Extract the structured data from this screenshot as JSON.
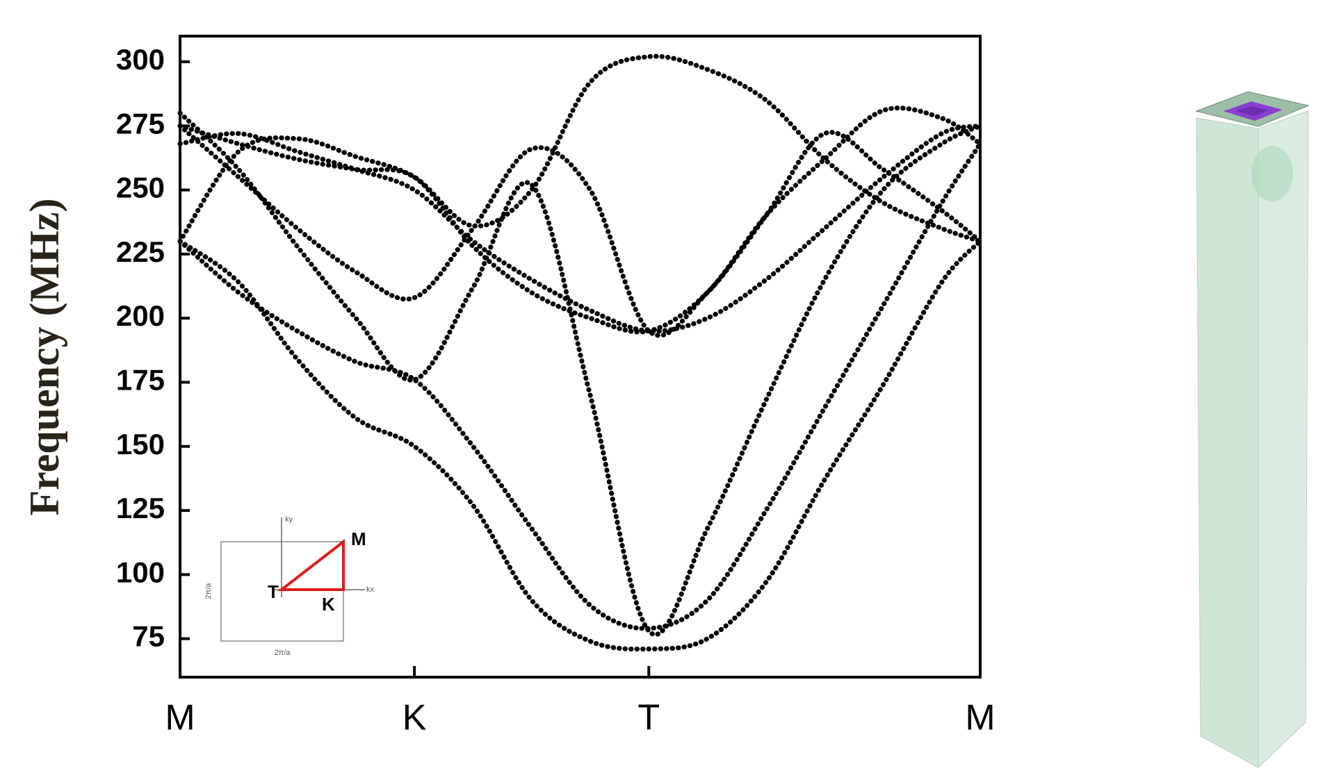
{
  "chart_data": {
    "type": "line",
    "ylabel": "Frequency (MHz)",
    "x": [
      0,
      0.25,
      0.5,
      0.75,
      1,
      1.25,
      1.5,
      1.75,
      2,
      2.25,
      2.5,
      2.75,
      3,
      3.25,
      3.414
    ],
    "xlim": [
      0,
      3.414
    ],
    "xticks": [
      {
        "value": 0,
        "label": "M"
      },
      {
        "value": 1,
        "label": "K"
      },
      {
        "value": 2,
        "label": "T"
      },
      {
        "value": 3.414,
        "label": "M"
      }
    ],
    "ylim": [
      60,
      310
    ],
    "yticks": [
      75,
      100,
      125,
      150,
      175,
      200,
      225,
      250,
      275,
      300
    ],
    "series": [
      {
        "color": "#000000",
        "values": [
          230,
          214,
          184,
          161,
          150,
          127,
          90,
          74,
          71,
          75,
          97,
          137,
          174,
          214,
          230
        ]
      },
      {
        "color": "#000000",
        "values": [
          230,
          210,
          195,
          183,
          176,
          150,
          118,
          88,
          79,
          90,
          125,
          165,
          205,
          245,
          268
        ]
      },
      {
        "color": "#000000",
        "values": [
          280,
          258,
          228,
          200,
          176,
          212,
          252,
          170,
          78,
          118,
          168,
          215,
          250,
          268,
          275
        ]
      },
      {
        "color": "#000000",
        "values": [
          268,
          272,
          265,
          258,
          250,
          230,
          215,
          203,
          195,
          200,
          215,
          235,
          255,
          272,
          275
        ]
      },
      {
        "color": "#000000",
        "values": [
          275,
          268,
          262,
          258,
          255,
          228,
          210,
          200,
          195,
          210,
          240,
          272,
          258,
          242,
          230
        ]
      },
      {
        "color": "#000000",
        "values": [
          230,
          265,
          270,
          263,
          255,
          236,
          250,
          292,
          302,
          297,
          285,
          262,
          245,
          235,
          230
        ]
      },
      {
        "color": "#000000",
        "values": [
          275,
          255,
          235,
          218,
          208,
          235,
          266,
          250,
          195,
          210,
          240,
          262,
          281,
          278,
          268
        ]
      }
    ],
    "inset": {
      "labels": [
        "M",
        "T",
        "K",
        "kx",
        "ky",
        "2π/a",
        "2π/a"
      ]
    }
  }
}
